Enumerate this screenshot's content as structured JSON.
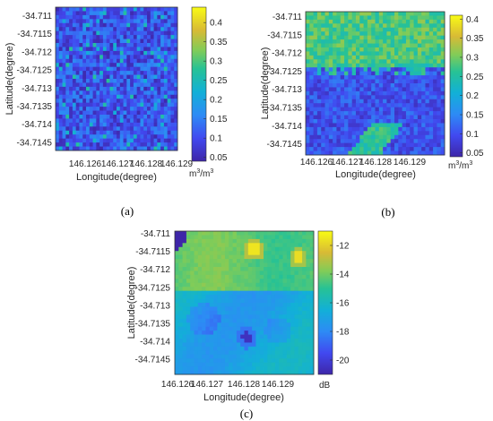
{
  "chart_data": [
    {
      "type": "heatmap",
      "panel_label": "(a)",
      "xlabel": "Longitude(degree)",
      "ylabel": "Latitude(degree)",
      "x_ticks": [
        "146.126",
        "146.127",
        "146.128",
        "146.129"
      ],
      "y_ticks": [
        "-34.711",
        "-34.7115",
        "-34.712",
        "-34.7125",
        "-34.713",
        "-34.7135",
        "-34.714",
        "-34.7145"
      ],
      "colorbar": {
        "ticks": [
          "0.05",
          "0.1",
          "0.15",
          "0.2",
          "0.25",
          "0.3",
          "0.35",
          "0.4"
        ],
        "range": [
          0.04,
          0.44
        ],
        "unit_base": "m",
        "unit_exp": "3",
        "unit_sep": "/",
        "unit_base2": "m",
        "unit_exp2": "3"
      },
      "colormap": "parula",
      "field": {
        "grid": [
          36,
          36
        ],
        "description": "speckled low values 0.05-0.2 with scattered higher pixels",
        "base": 0.1,
        "noise": 0.07,
        "range": [
          0.04,
          0.32
        ]
      }
    },
    {
      "type": "heatmap",
      "panel_label": "(b)",
      "xlabel": "Longitude(degree)",
      "ylabel": "Latitude(degree)",
      "x_ticks": [
        "146.126",
        "146.127",
        "146.128",
        "146.129"
      ],
      "y_ticks": [
        "-34.711",
        "-34.7115",
        "-34.712",
        "-34.7125",
        "-34.713",
        "-34.7135",
        "-34.714",
        "-34.7145"
      ],
      "colorbar": {
        "ticks": [
          "0.05",
          "0.1",
          "0.15",
          "0.2",
          "0.25",
          "0.3",
          "0.35",
          "0.4"
        ],
        "range": [
          0.04,
          0.41
        ],
        "unit_base": "m",
        "unit_exp": "3",
        "unit_sep": "/",
        "unit_base2": "m",
        "unit_exp2": "3"
      },
      "colormap": "parula",
      "field": {
        "grid": [
          36,
          36
        ],
        "description": "upper third high values ~0.3, lower part low values ~0.1 with a higher band near bottom",
        "high": 0.3,
        "low": 0.1,
        "range": [
          0.05,
          0.38
        ]
      }
    },
    {
      "type": "heatmap",
      "panel_label": "(c)",
      "xlabel": "Longitude(degree)",
      "ylabel": "Latitude(degree)",
      "x_ticks": [
        "146.126",
        "146.127",
        "146.128",
        "146.129"
      ],
      "y_ticks": [
        "-34.711",
        "-34.7115",
        "-34.712",
        "-34.7125",
        "-34.713",
        "-34.7135",
        "-34.714",
        "-34.7145"
      ],
      "colorbar": {
        "ticks": [
          "-12",
          "-14",
          "-16",
          "-18",
          "-20"
        ],
        "range": [
          -21,
          -11
        ],
        "unit": "dB"
      },
      "colormap": "parula",
      "field": {
        "grid": [
          36,
          36
        ],
        "description": "smooth backscatter, upper region about -14 dB, lower region about -17 dB, two bright hot spots near top, dark spot lower center",
        "range": [
          -21,
          -11
        ]
      }
    }
  ]
}
